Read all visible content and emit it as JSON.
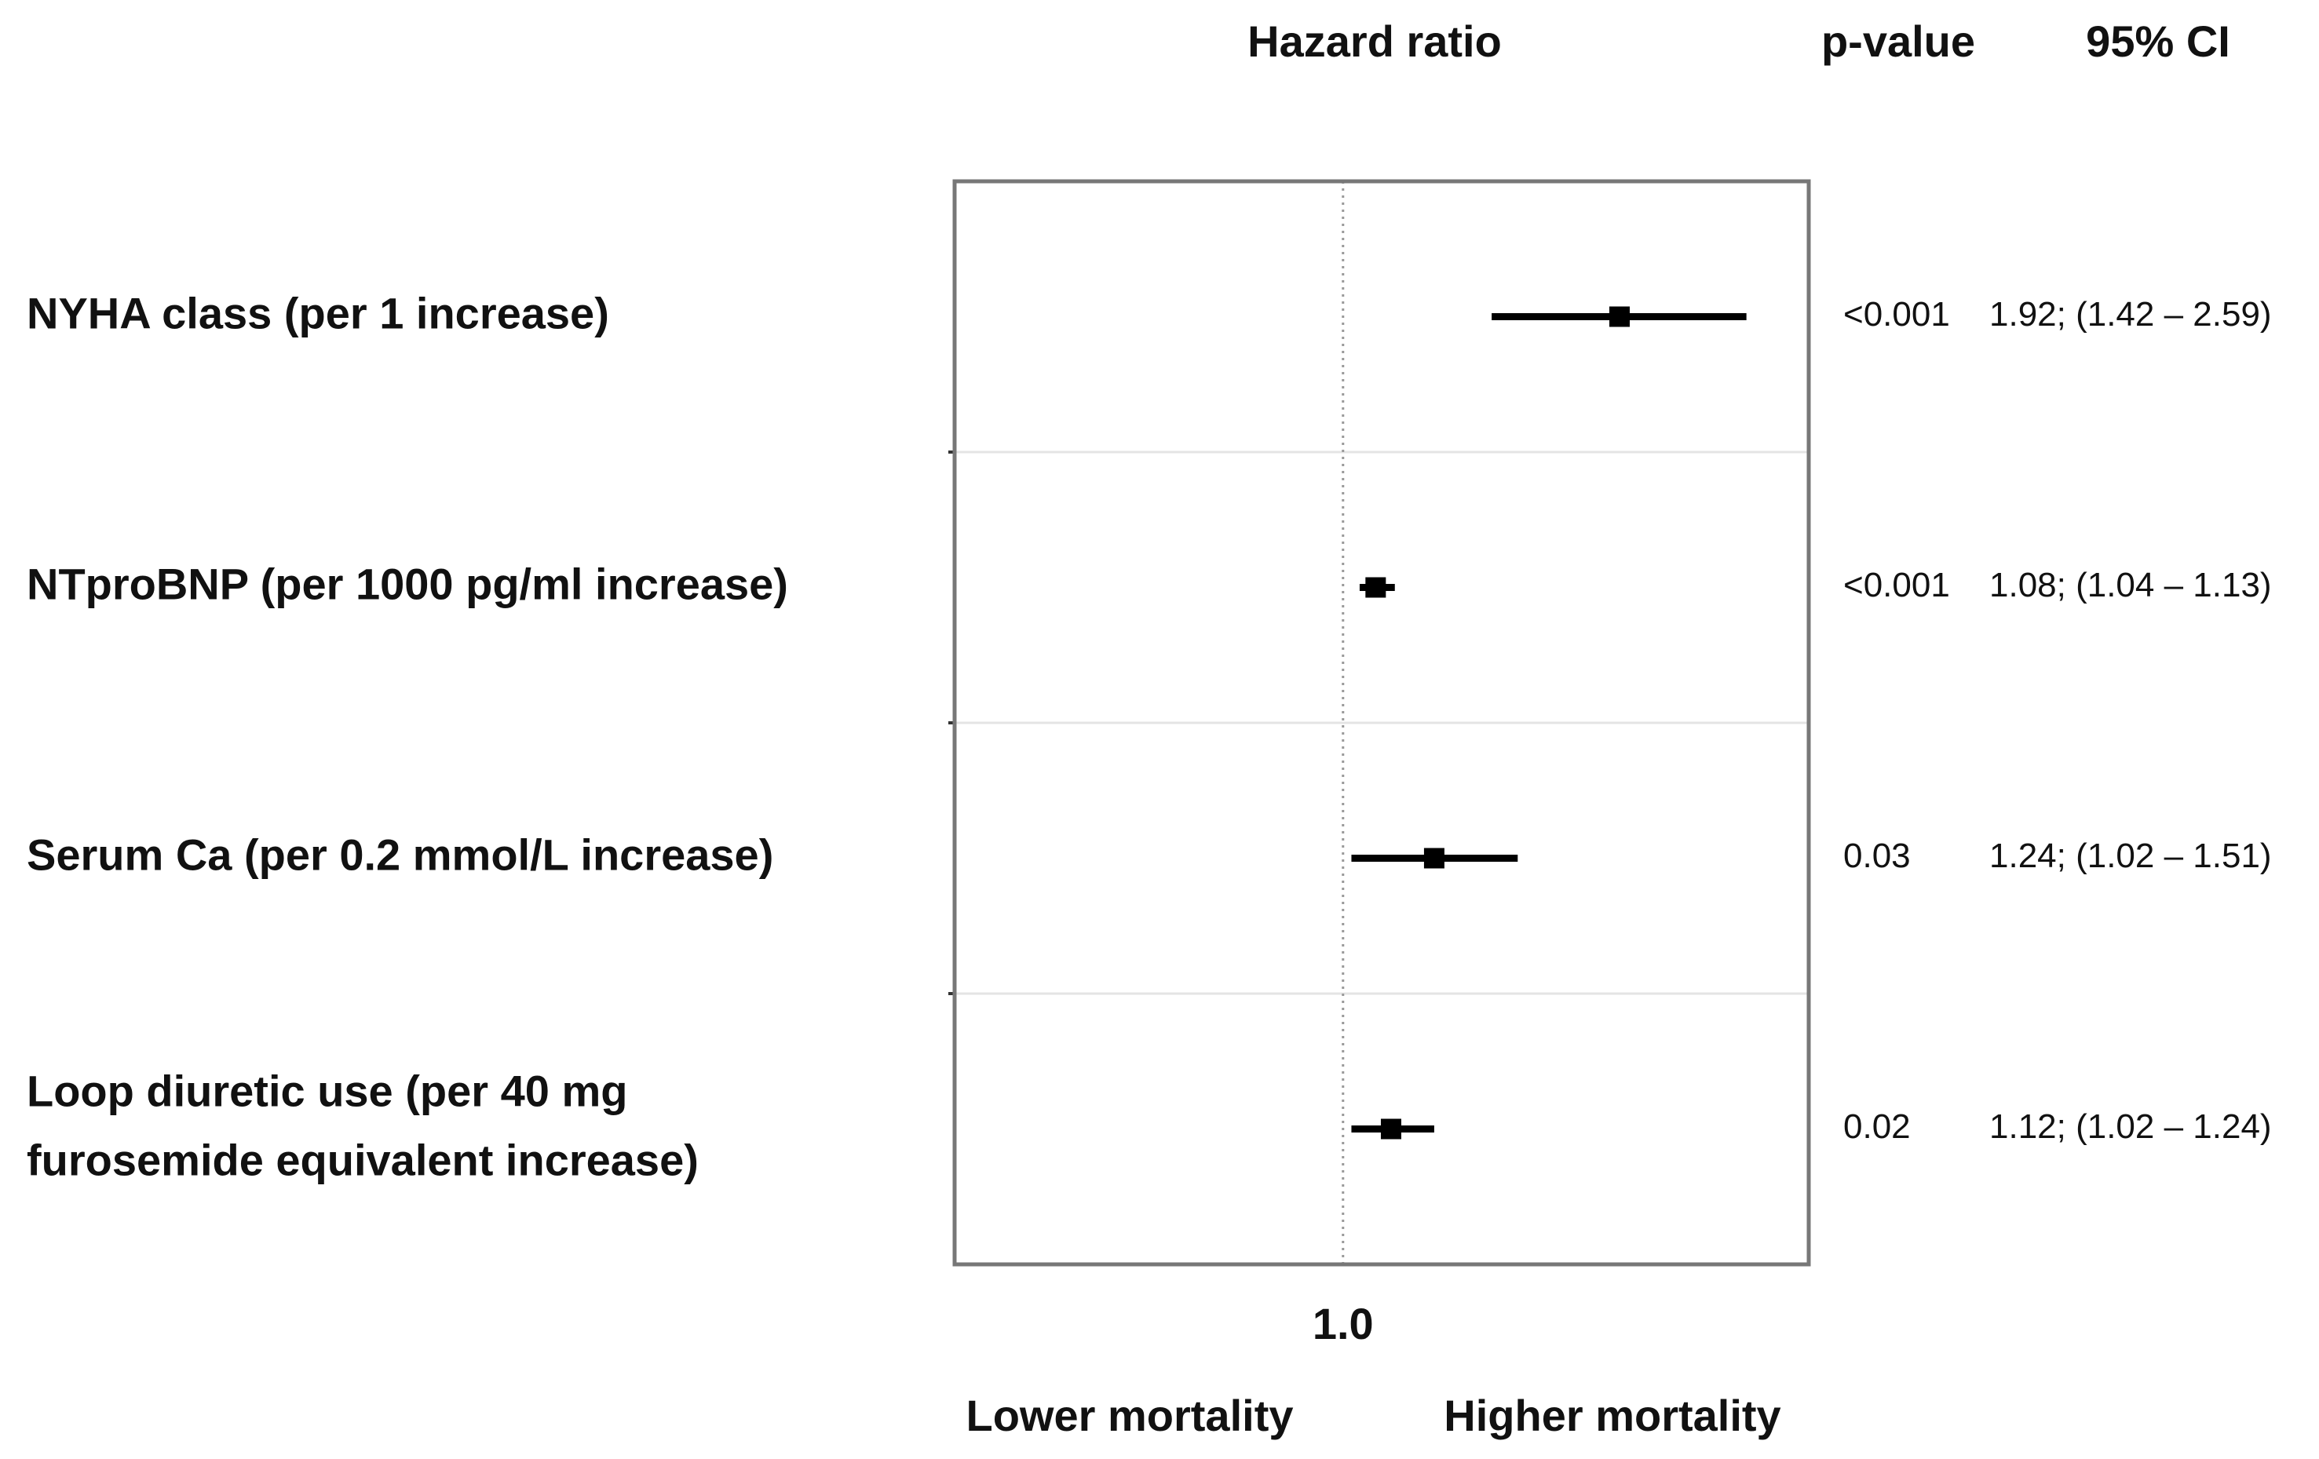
{
  "chart_data": {
    "type": "forest",
    "title": "Hazard ratio",
    "p_value_header": "p-value",
    "ci_header": "95% CI",
    "categories": [
      "NYHA class (per 1 increase)",
      "NTproBNP (per 1000 pg/ml increase)",
      "Serum Ca (per 0.2 mmol/L increase)",
      "Loop diuretic use (per 40 mg\nfurosemide equivalent increase)"
    ],
    "values": [
      1.92,
      1.08,
      1.24,
      1.12
    ],
    "ci_lower": [
      1.42,
      1.04,
      1.02,
      1.02
    ],
    "ci_upper": [
      2.59,
      1.13,
      1.51,
      1.24
    ],
    "p_values": [
      "<0.001",
      "<0.001",
      "0.03",
      "0.02"
    ],
    "ci_labels": [
      "1.92; (1.42 – 2.59)",
      "1.08; (1.04 – 1.13)",
      "1.24; (1.02 – 1.51)",
      "1.12; (1.02 – 1.24)"
    ],
    "color": "#000000",
    "xscale": "log",
    "xlim": [
      0.4,
      3.0
    ],
    "xticks": [
      {
        "value": 1,
        "label": "1.0"
      }
    ],
    "annotations": [
      "Lower mortality",
      "Higher mortality"
    ]
  }
}
